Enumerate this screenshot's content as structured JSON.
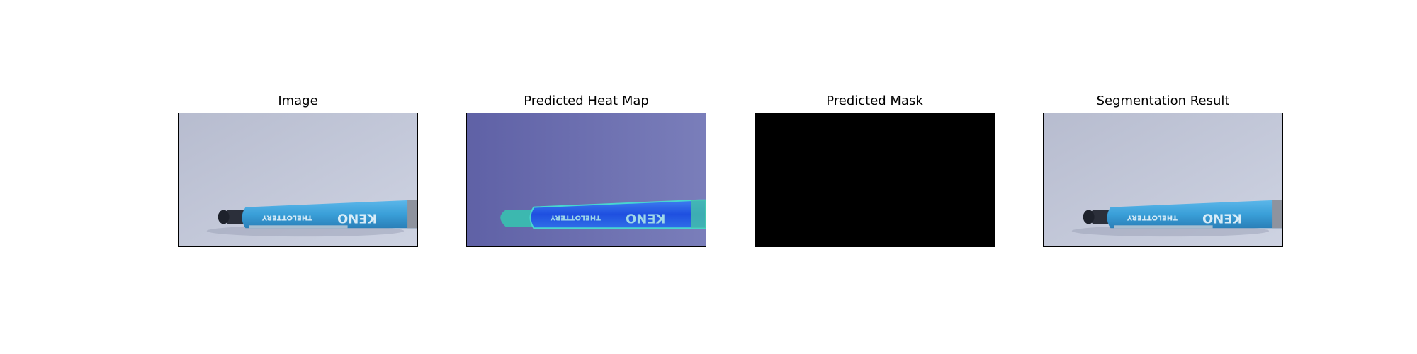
{
  "panels": [
    {
      "title": "Image",
      "kind": "photo"
    },
    {
      "title": "Predicted Heat Map",
      "kind": "heatmap"
    },
    {
      "title": "Predicted Mask",
      "kind": "mask"
    },
    {
      "title": "Segmentation Result",
      "kind": "photo"
    }
  ],
  "pen_print": {
    "brand": "KENO",
    "line": "THELOTTERY"
  },
  "colors": {
    "background": "#c3c9da",
    "heatmap_base": "#6c6fb0",
    "mask": "#000000",
    "pen_body": "#3a9fd8"
  }
}
